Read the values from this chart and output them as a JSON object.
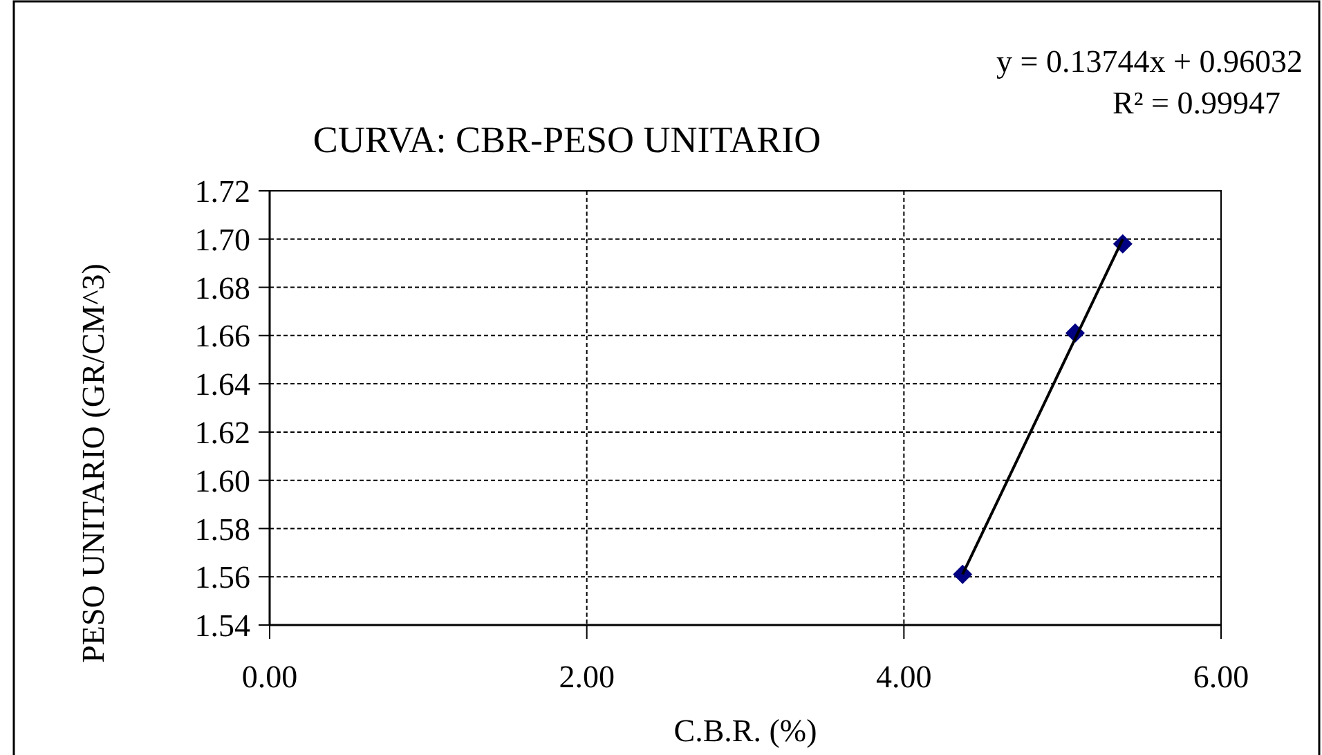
{
  "chart_data": {
    "type": "scatter",
    "title": "CURVA: CBR-PESO UNITARIO",
    "xlabel": "C.B.R. (%)",
    "ylabel": "PESO UNITARIO  (GR/CM^3)",
    "annotations": [
      "y = 0.13744x + 0.96032",
      "R² = 0.99947"
    ],
    "series": [
      {
        "color": "#000080",
        "marker": "diamond",
        "x": [
          4.37,
          5.08,
          5.38
        ],
        "values": [
          1.561,
          1.661,
          1.698
        ]
      },
      {
        "type": "line",
        "color": "#000000",
        "marker": "none",
        "line_style": "solid",
        "x": [
          4.37,
          5.38
        ],
        "values": [
          1.561,
          1.7
        ]
      }
    ],
    "xlim": [
      0,
      6
    ],
    "xticks": [
      {
        "value": 0,
        "label": "0.00"
      },
      {
        "value": 2,
        "label": "2.00"
      },
      {
        "value": 4,
        "label": "4.00"
      },
      {
        "value": 6,
        "label": "6.00"
      }
    ],
    "ylim": [
      1.54,
      1.72
    ],
    "yticks": [
      1.54,
      1.56,
      1.58,
      {
        "value": 1.6,
        "label": "1.60"
      },
      1.62,
      1.64,
      1.66,
      1.68,
      {
        "value": 1.7,
        "label": "1.70"
      },
      1.72
    ],
    "grid": true
  }
}
